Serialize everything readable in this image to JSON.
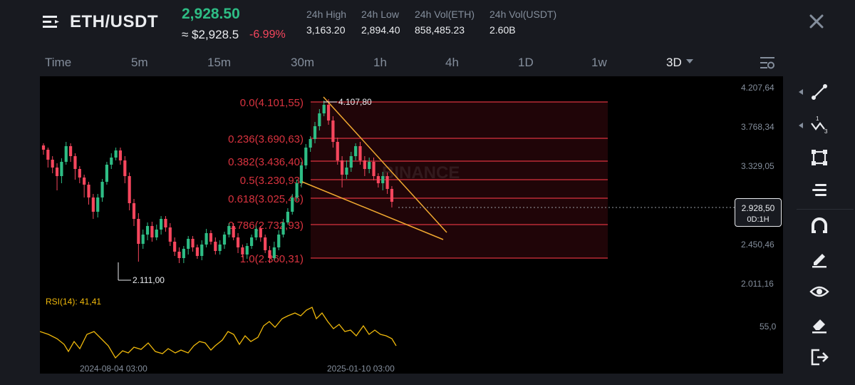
{
  "header": {
    "pair": "ETH/USDT",
    "last_price": "2,928.50",
    "approx_price": "≈ $2,928.5",
    "change_pct": "-6.99%",
    "stats": [
      {
        "label": "24h High",
        "value": "3,163.20"
      },
      {
        "label": "24h Low",
        "value": "2,894.40"
      },
      {
        "label": "24h Vol(ETH)",
        "value": "858,485.23"
      },
      {
        "label": "24h Vol(USDT)",
        "value": "2.60B"
      }
    ]
  },
  "tabs": [
    {
      "label": "Time",
      "active": false
    },
    {
      "label": "5m",
      "active": false
    },
    {
      "label": "15m",
      "active": false
    },
    {
      "label": "30m",
      "active": false
    },
    {
      "label": "1h",
      "active": false
    },
    {
      "label": "4h",
      "active": false
    },
    {
      "label": "1D",
      "active": false
    },
    {
      "label": "1w",
      "active": false
    },
    {
      "label": "3D",
      "active": true
    }
  ],
  "chart": {
    "y_axis_labels": [
      "4.207,64",
      "3.768,34",
      "3.329,05",
      "2.450,46",
      "2.011,16"
    ],
    "rsi_axis_label": "55,0",
    "fib_levels": [
      {
        "label": "0.0(4.101,55)"
      },
      {
        "label": "0.236(3.690,63)"
      },
      {
        "label": "0.382(3.436,40)"
      },
      {
        "label": "0.5(3.230,93)"
      },
      {
        "label": "0.618(3.025,46)"
      },
      {
        "label": "0.786(2.732,93)"
      },
      {
        "label": "1.0(2.360,31)"
      }
    ],
    "high_marker": "4.107,80",
    "low_marker": "2.111,00",
    "watermark": "BINANCE",
    "rsi_label": "RSI(14): 41,41",
    "x_axis_labels": [
      "2024-08-04 03:00",
      "2025-01-10 03:00"
    ],
    "current_price_tag": "2.928,50",
    "current_countdown": "0D:1H"
  },
  "colors": {
    "up": "#2ebd85",
    "down": "#f6465d",
    "fib_line": "#d9333f",
    "trendline": "#f0a830",
    "rsi": "#f0b90b"
  },
  "tools": [
    {
      "icon": "trend-line-icon"
    },
    {
      "icon": "fib-wave-icon"
    },
    {
      "icon": "rectangle-icon"
    },
    {
      "icon": "text-lines-icon"
    },
    {
      "icon": "magnet-icon"
    },
    {
      "icon": "pencil-icon"
    },
    {
      "icon": "eye-icon"
    },
    {
      "icon": "eraser-icon"
    },
    {
      "icon": "exit-icon"
    }
  ]
}
